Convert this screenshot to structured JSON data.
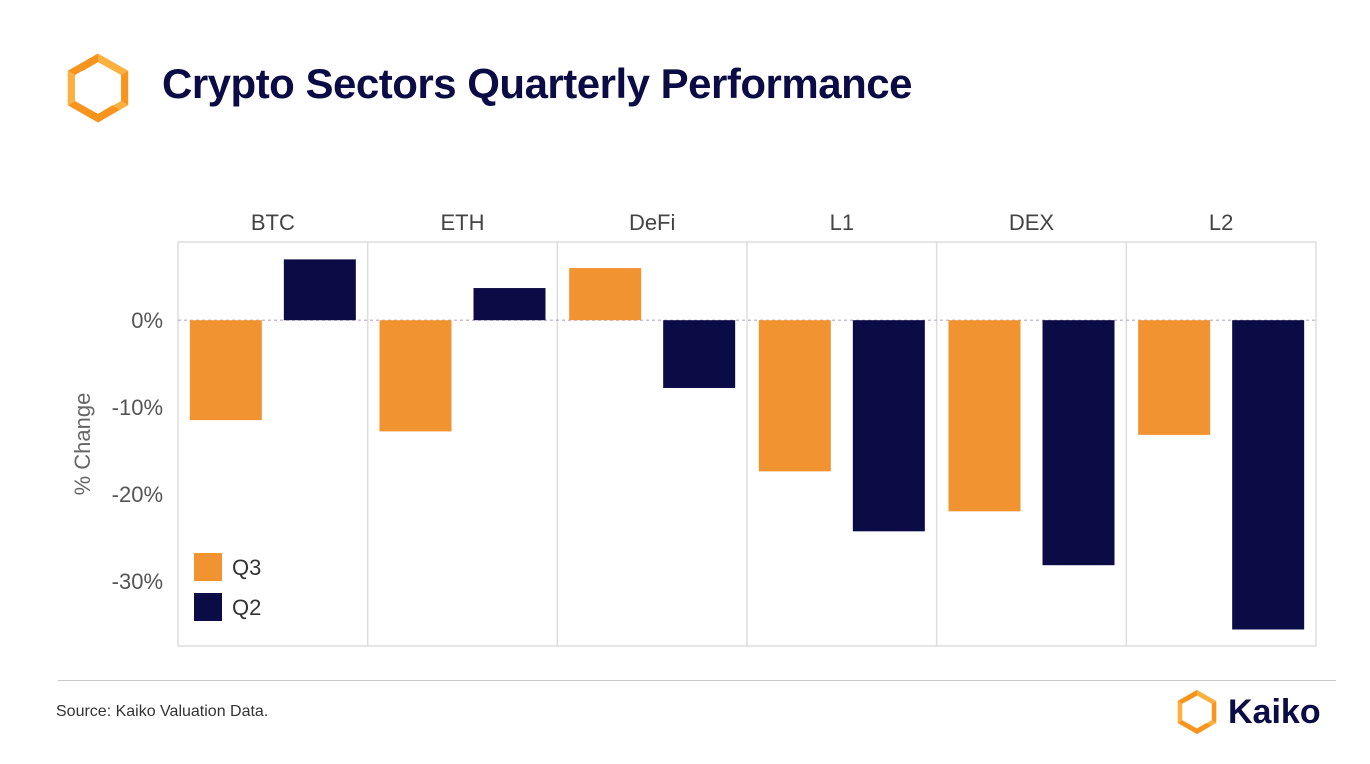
{
  "header": {
    "title": "Crypto Sectors Quarterly Performance",
    "logo_icon": "kaiko-logo-icon"
  },
  "footer": {
    "source": "Source: Kaiko Valuation Data.",
    "brand_name": "Kaiko",
    "brand_icon": "kaiko-logo-icon"
  },
  "colors": {
    "q3": "#f29332",
    "q2": "#0b0b45",
    "title": "#0b0b45",
    "logo_orange": "#f7941d",
    "logo_yellow": "#fbb040"
  },
  "chart_data": {
    "type": "bar",
    "categories": [
      "BTC",
      "ETH",
      "DeFi",
      "L1",
      "DEX",
      "L2"
    ],
    "series": [
      {
        "name": "Q3",
        "values": [
          -11.5,
          -12.8,
          6.0,
          -17.4,
          -22.0,
          -13.2
        ]
      },
      {
        "name": "Q2",
        "values": [
          7.0,
          3.7,
          -7.8,
          -24.3,
          -28.2,
          -35.6
        ]
      }
    ],
    "ylabel": "% Change",
    "yticks": [
      "0%",
      "-10%",
      "-20%",
      "-30%"
    ],
    "ytick_values": [
      0,
      -10,
      -20,
      -30
    ],
    "ylim": [
      -37.5,
      9.0
    ],
    "legend_position": "bottom-left",
    "grid": false
  }
}
